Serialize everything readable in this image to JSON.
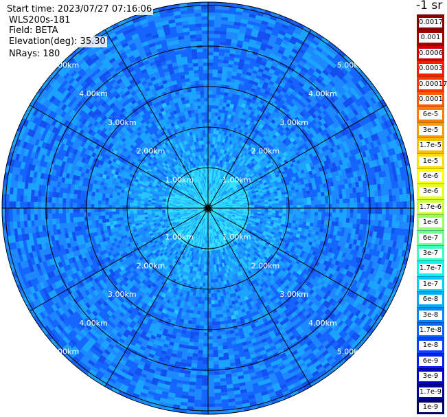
{
  "header": {
    "start_time": "Start time: 2023/07/27 07:16:06",
    "instrument": "WLS200s-181",
    "field": "Field: BETA",
    "elevation": "Elevation(deg): 35.30",
    "nrays": "NRays: 180"
  },
  "range_rings": {
    "labels": [
      "1.00km",
      "2.00km",
      "3.00km",
      "4.00km",
      "5.00km"
    ],
    "max_range_km": 5.0
  },
  "colorbar": {
    "unit": "-1 sr",
    "labels": [
      "0.0017",
      "0.001",
      "0.0006",
      "0.0003",
      "0.00017",
      "0.0001",
      "6e-5",
      "3e-5",
      "1.7e-5",
      "1e-5",
      "6e-6",
      "3e-6",
      "1.7e-6",
      "1e-6",
      "6e-7",
      "3e-7",
      "1.7e-7",
      "1e-7",
      "6e-8",
      "3e-8",
      "1.7e-8",
      "1e-8",
      "6e-9",
      "3e-9",
      "1.7e-9",
      "1e-9"
    ],
    "colors": [
      "#8b0000",
      "#a00000",
      "#cc0000",
      "#ff1a00",
      "#ff3800",
      "#ff5a00",
      "#ff7a00",
      "#ff9a00",
      "#ffbb00",
      "#ffdd00",
      "#ffff00",
      "#e4ff1c",
      "#c8ff38",
      "#9aff65",
      "#6cff93",
      "#3cffc2",
      "#14f2ec",
      "#00d0ff",
      "#00aaff",
      "#0088ff",
      "#0066ff",
      "#0044ff",
      "#0022ee",
      "#0000cc",
      "#0000a0",
      "#000070"
    ]
  },
  "palette": {
    "field_colors": [
      "#0a3cff",
      "#1450f0",
      "#1466ff",
      "#1e88ff",
      "#1aa4ff",
      "#28c4ff",
      "#32e0ff"
    ],
    "grid_line": "#000000",
    "ring_label": "#ffffff"
  }
}
